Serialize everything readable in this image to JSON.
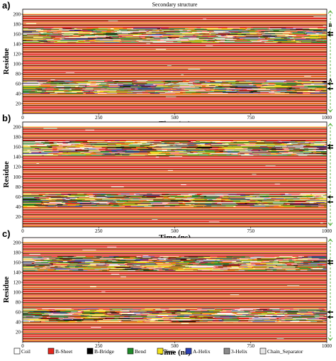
{
  "chart_data": [
    {
      "type": "heatmap",
      "panel_label": "a)",
      "title": "Secondary structure",
      "xlabel": "Time (ns)",
      "ylabel": "Residue",
      "xlim": [
        0,
        1000
      ],
      "ylim": [
        0,
        210
      ],
      "xticks": [
        0,
        250,
        500,
        750,
        1000
      ],
      "yticks": [
        20,
        40,
        60,
        80,
        100,
        120,
        140,
        160,
        180,
        200
      ],
      "annotations": [
        {
          "text": "B",
          "residue": 163
        },
        {
          "text": "A",
          "residue": 52
        }
      ],
      "arrow_residues": [
        163,
        158,
        60,
        50
      ]
    },
    {
      "type": "heatmap",
      "panel_label": "b)",
      "title": "",
      "xlabel": "Time (ns)",
      "ylabel": "Residue",
      "xlim": [
        0,
        1000
      ],
      "ylim": [
        0,
        210
      ],
      "xticks": [
        0,
        250,
        500,
        750,
        1000
      ],
      "yticks": [
        20,
        40,
        60,
        80,
        100,
        120,
        140,
        160,
        180,
        200
      ],
      "annotations": [],
      "arrow_residues": [
        163,
        158,
        60,
        50
      ]
    },
    {
      "type": "heatmap",
      "panel_label": "c)",
      "title": "",
      "xlabel": "Time (ns)",
      "ylabel": "Residue",
      "xlim": [
        0,
        1000
      ],
      "ylim": [
        0,
        210
      ],
      "xticks": [
        0,
        250,
        500,
        750,
        1000
      ],
      "yticks": [
        20,
        40,
        60,
        80,
        100,
        120,
        140,
        160,
        180,
        200
      ],
      "annotations": [],
      "arrow_residues": [
        163,
        158,
        60,
        50
      ]
    }
  ],
  "legend": [
    {
      "label": "Coil",
      "color": "#ffffff"
    },
    {
      "label": "B-Sheet",
      "color": "#e3261c"
    },
    {
      "label": "B-Bridge",
      "color": "#000000"
    },
    {
      "label": "Bend",
      "color": "#1f8a2a"
    },
    {
      "label": "Turn",
      "color": "#f2e21a"
    },
    {
      "label": "A-Helix",
      "color": "#2b3fb4"
    },
    {
      "label": "3-Helix",
      "color": "#8a8a8a"
    },
    {
      "label": "Chain_Separator",
      "color": "#e6e6e6"
    }
  ],
  "arrow_color": "#000000",
  "bracket_color": "#3aa51c"
}
